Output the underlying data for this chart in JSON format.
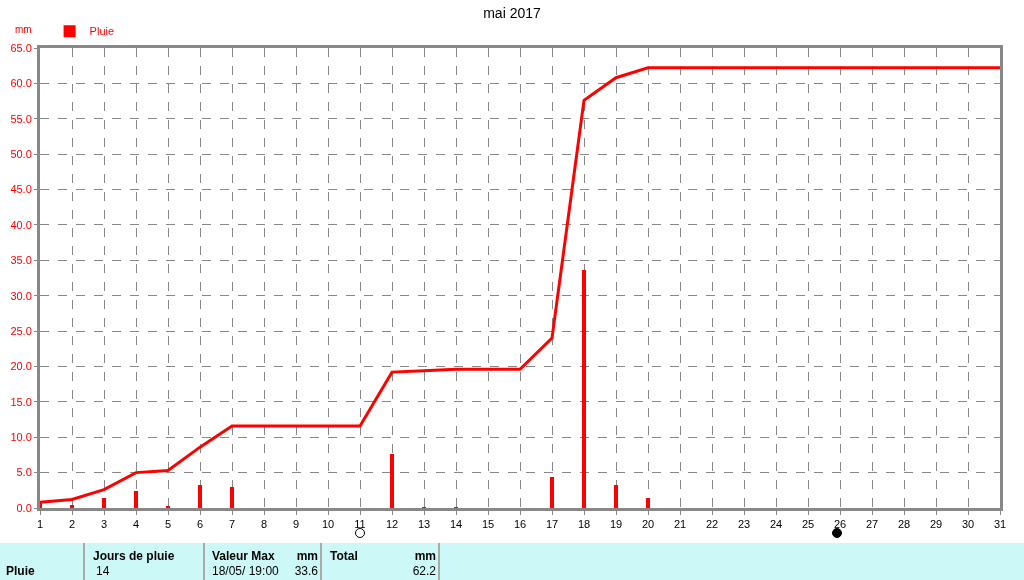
{
  "chart_data": {
    "type": "bar",
    "title": "mai 2017",
    "ylabel": "mm",
    "x": [
      1,
      2,
      3,
      4,
      5,
      6,
      7,
      8,
      9,
      10,
      11,
      12,
      13,
      14,
      15,
      16,
      17,
      18,
      19,
      20,
      21,
      22,
      23,
      24,
      25,
      26,
      27,
      28,
      29,
      30,
      31
    ],
    "series": [
      {
        "name": "Pluie",
        "color": "#ff0000",
        "values": [
          0.8,
          0.4,
          1.4,
          2.4,
          0.3,
          3.3,
          3.0,
          0,
          0,
          0,
          0,
          7.6,
          0.2,
          0.2,
          0,
          0,
          4.4,
          33.6,
          3.2,
          1.4,
          0,
          0,
          0,
          0,
          0,
          0,
          0,
          0,
          0,
          0,
          0
        ]
      },
      {
        "type": "line",
        "color": "#ff0000",
        "values": [
          0.8,
          1.2,
          2.6,
          5.0,
          5.3,
          8.6,
          11.6,
          11.6,
          11.6,
          11.6,
          11.6,
          19.2,
          19.4,
          19.6,
          19.6,
          19.6,
          24.0,
          57.6,
          60.8,
          62.2,
          62.2,
          62.2,
          62.2,
          62.2,
          62.2,
          62.2,
          62.2,
          62.2,
          62.2,
          62.2,
          62.2
        ]
      }
    ],
    "xlim": [
      1,
      31
    ],
    "xticks": [
      1,
      2,
      3,
      4,
      5,
      6,
      7,
      8,
      9,
      10,
      11,
      12,
      13,
      14,
      15,
      16,
      17,
      18,
      19,
      20,
      21,
      22,
      23,
      24,
      25,
      26,
      27,
      28,
      29,
      30,
      31
    ],
    "ylim": [
      0,
      65
    ],
    "yticks": [
      {
        "value": 0,
        "label": "0.0"
      },
      {
        "value": 5,
        "label": "5.0"
      },
      {
        "value": 10,
        "label": "10.0"
      },
      {
        "value": 15,
        "label": "15.0"
      },
      {
        "value": 20,
        "label": "20.0"
      },
      {
        "value": 25,
        "label": "25.0"
      },
      {
        "value": 30,
        "label": "30.0"
      },
      {
        "value": 35,
        "label": "35.0"
      },
      {
        "value": 40,
        "label": "40.0"
      },
      {
        "value": 45,
        "label": "45.0"
      },
      {
        "value": 50,
        "label": "50.0"
      },
      {
        "value": 55,
        "label": "55.0"
      },
      {
        "value": 60,
        "label": "60.0"
      },
      {
        "value": 65,
        "label": "65.0"
      }
    ],
    "grid": true,
    "legend": "top left",
    "marker": "none",
    "line_style": "solid",
    "annotations": [
      "Pluie",
      "Jours de pluie",
      "14",
      "Valeur Max",
      "mm",
      "18/05/ 19:00",
      "33.6",
      "Total",
      "mm",
      "62.2"
    ]
  }
}
